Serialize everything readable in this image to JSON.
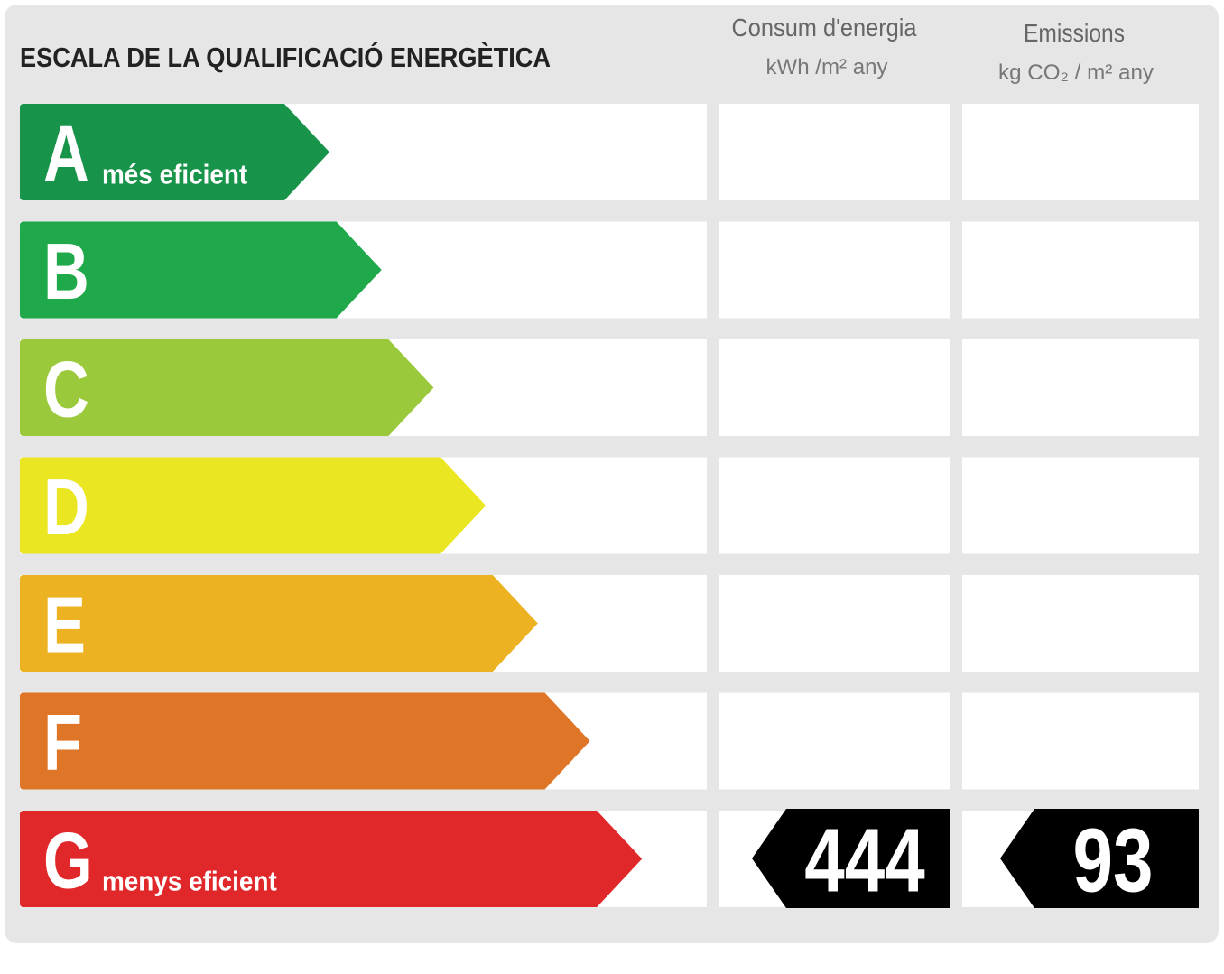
{
  "title": "ESCALA DE LA QUALIFICACIÓ ENERGÈTICA",
  "columns": [
    {
      "title": "Consum d'energia",
      "unit": "kWh /m² any"
    },
    {
      "title": "Emissions",
      "unit": "kg CO₂ / m² any"
    }
  ],
  "rows": [
    {
      "letter": "A",
      "color": "#17944a",
      "note": "més eficient"
    },
    {
      "letter": "B",
      "color": "#20a94a"
    },
    {
      "letter": "C",
      "color": "#9ac93c"
    },
    {
      "letter": "D",
      "color": "#ebe622"
    },
    {
      "letter": "E",
      "color": "#ecb221"
    },
    {
      "letter": "F",
      "color": "#df7526"
    },
    {
      "letter": "G",
      "color": "#e0272a",
      "note": "menys eficient",
      "energy": 444,
      "emissions": 93
    }
  ]
}
